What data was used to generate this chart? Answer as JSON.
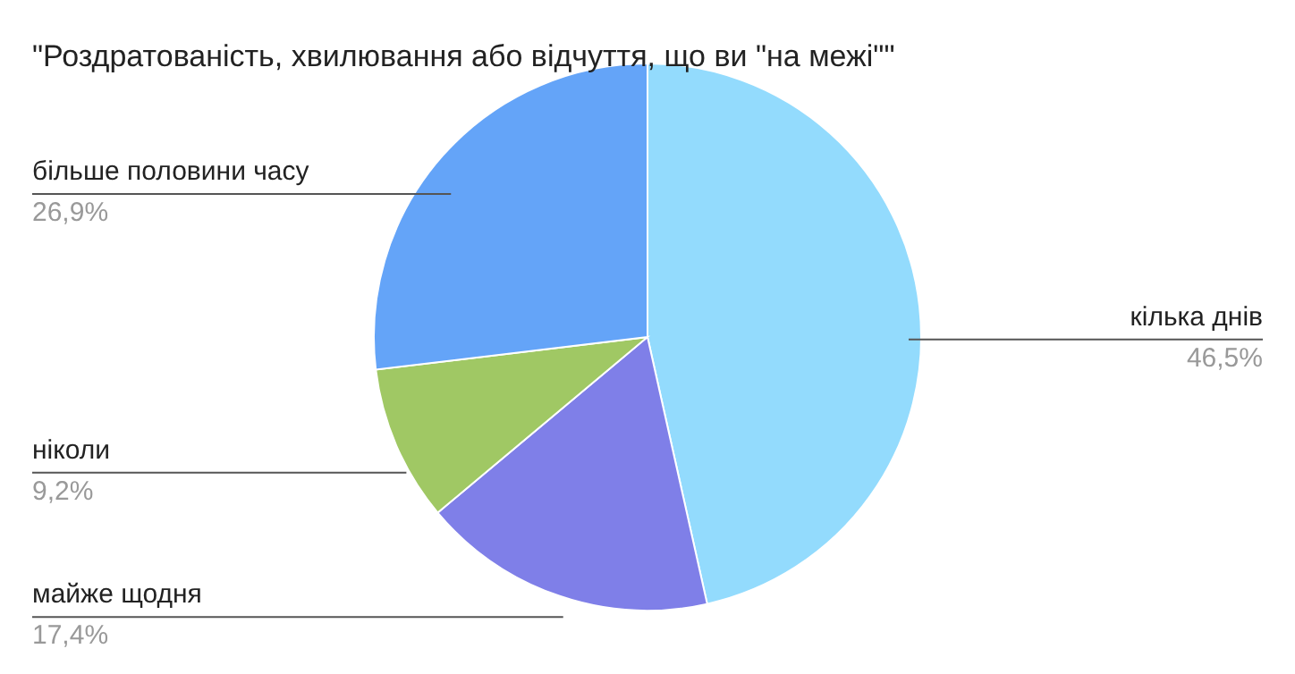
{
  "chart_data": {
    "type": "pie",
    "title": "\"Роздратованість, хвилювання або відчуття, що ви \"на межі\"\"",
    "categories": [
      "кілька днів",
      "майже щодня",
      "ніколи",
      "більше половини часу"
    ],
    "values": [
      46.5,
      17.4,
      9.2,
      26.9
    ],
    "colors": [
      "#93dbfd",
      "#7f7fe8",
      "#a0c864",
      "#64a4f8"
    ],
    "value_labels": [
      "46,5%",
      "17,4%",
      "9,2%",
      "26,9%"
    ]
  }
}
